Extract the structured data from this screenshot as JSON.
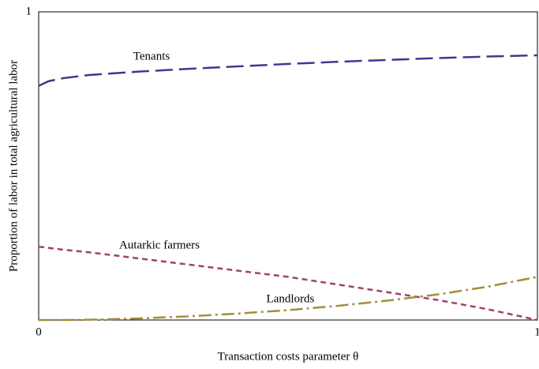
{
  "chart_data": {
    "type": "line",
    "x_label": "Transaction costs parameter θ",
    "y_label": "Proportion of labor in total agricultural labor",
    "x": [
      0,
      0.02,
      0.05,
      0.1,
      0.2,
      0.3,
      0.4,
      0.5,
      0.6,
      0.7,
      0.8,
      0.9,
      1
    ],
    "series": [
      {
        "name": "Tenants",
        "color": "#3b3b8f",
        "values": [
          0.76,
          0.775,
          0.785,
          0.795,
          0.806,
          0.815,
          0.823,
          0.831,
          0.838,
          0.844,
          0.85,
          0.855,
          0.859
        ]
      },
      {
        "name": "Autarkic farmers",
        "color": "#a0426f",
        "values": [
          0.238,
          0.234,
          0.228,
          0.22,
          0.2,
          0.18,
          0.16,
          0.14,
          0.115,
          0.09,
          0.065,
          0.035,
          0
        ]
      },
      {
        "name": "Landlords",
        "color": "#a38e3c",
        "values": [
          0,
          0,
          0,
          0.001,
          0.005,
          0.012,
          0.021,
          0.032,
          0.046,
          0.063,
          0.083,
          0.108,
          0.14
        ]
      }
    ],
    "xlim": [
      0,
      1
    ],
    "xticks": [
      0,
      1
    ],
    "ylim": [
      0,
      1
    ],
    "yticks": [
      1
    ],
    "grid": false
  }
}
